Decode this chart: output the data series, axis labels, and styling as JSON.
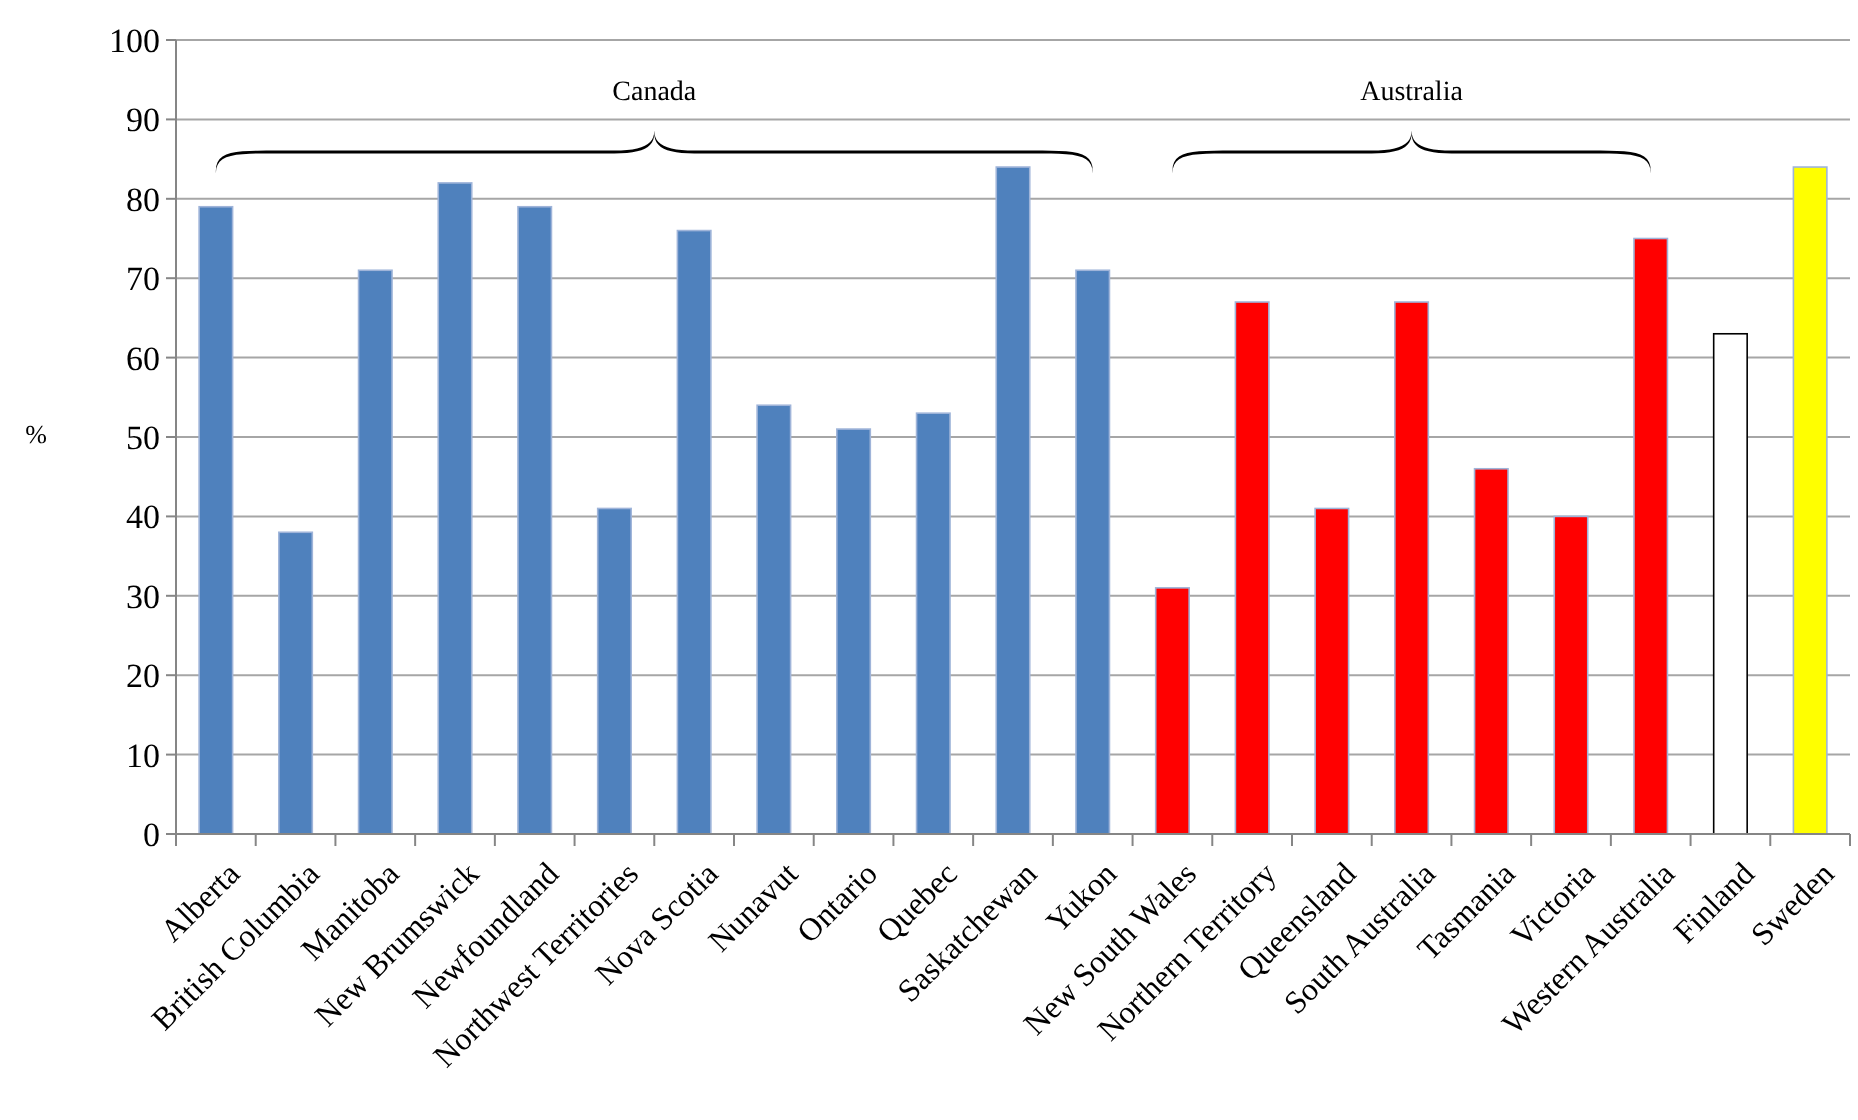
{
  "chart_data": {
    "type": "bar",
    "ylabel": "%",
    "categories": [
      "Alberta",
      "British Columbia",
      "Manitoba",
      "New Brumswick",
      "Newfoundland",
      "Northwest Territories",
      "Nova Scotia",
      "Nunavut",
      "Ontario",
      "Quebec",
      "Saskatchewan",
      "Yukon",
      "New South Wales",
      "Northern Territory",
      "Queensland",
      "South Australia",
      "Tasmania",
      "Victoria",
      "Western Australia",
      "Finland",
      "Sweden"
    ],
    "values": [
      79,
      38,
      71,
      82,
      79,
      41,
      76,
      54,
      51,
      53,
      84,
      71,
      31,
      67,
      41,
      67,
      46,
      40,
      75,
      63,
      84
    ],
    "colors": [
      "#4f81bd",
      "#4f81bd",
      "#4f81bd",
      "#4f81bd",
      "#4f81bd",
      "#4f81bd",
      "#4f81bd",
      "#4f81bd",
      "#4f81bd",
      "#4f81bd",
      "#4f81bd",
      "#4f81bd",
      "#ff0000",
      "#ff0000",
      "#ff0000",
      "#ff0000",
      "#ff0000",
      "#ff0000",
      "#ff0000",
      "#ffffff",
      "#ffff00"
    ],
    "ylim": [
      0,
      100
    ],
    "yticks": [
      0,
      10,
      20,
      30,
      40,
      50,
      60,
      70,
      80,
      90,
      100
    ],
    "grid": "y",
    "annotations": [
      "Canada",
      "Australia"
    ]
  }
}
